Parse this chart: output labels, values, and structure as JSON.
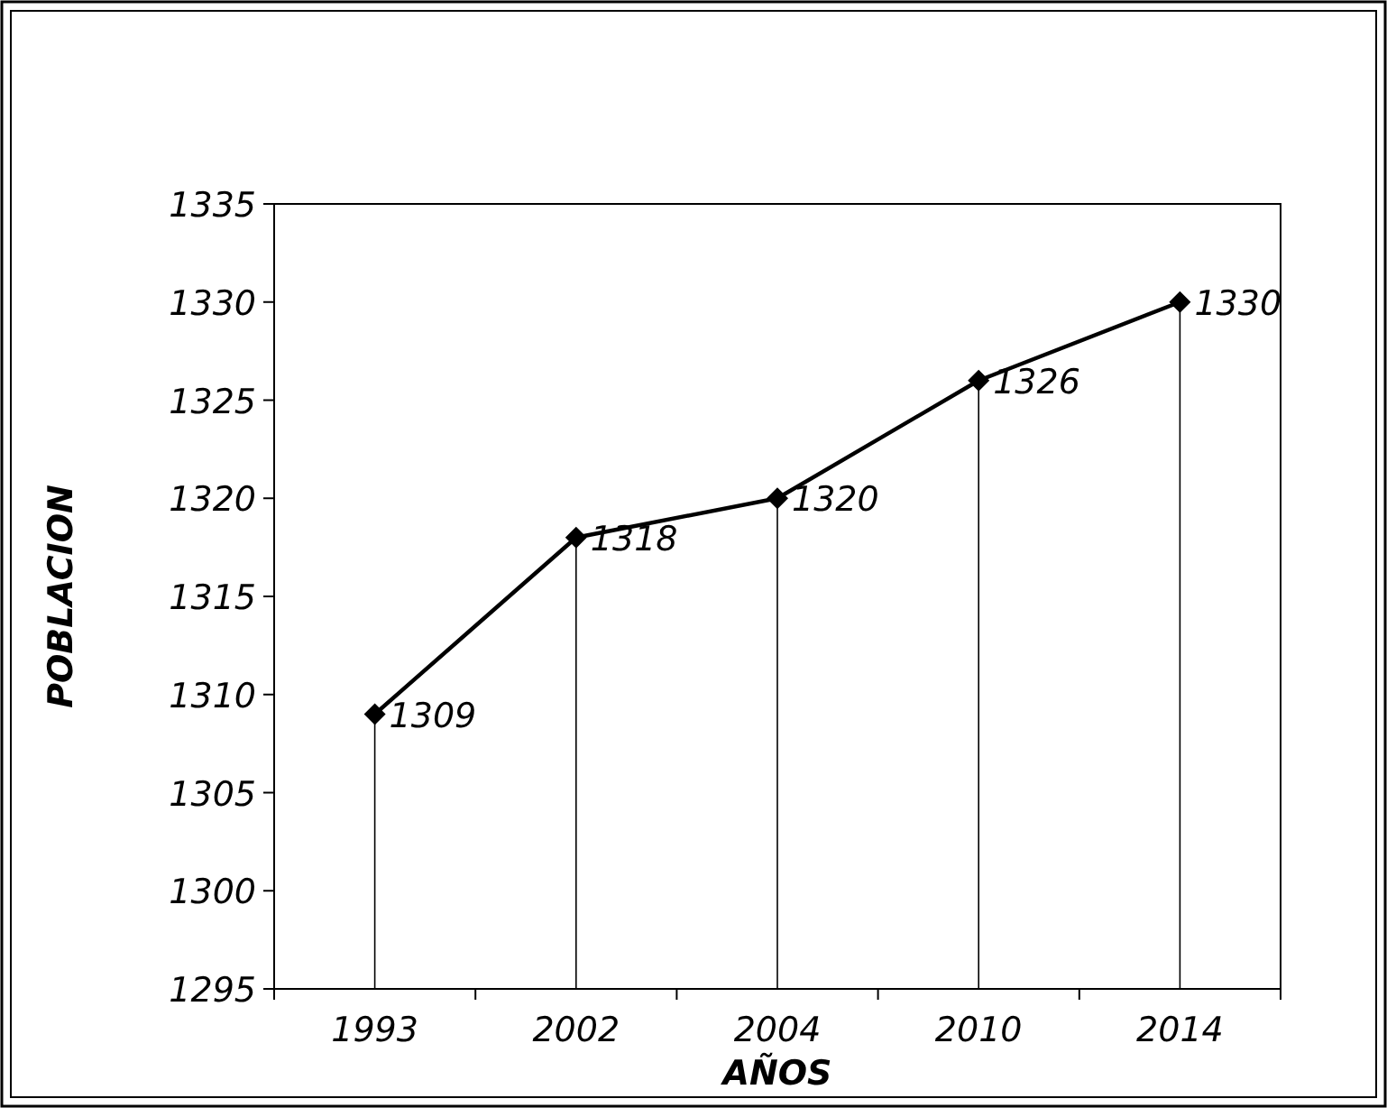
{
  "chart_data": {
    "type": "line",
    "xlabel": "AÑOS",
    "ylabel": "POBLACION",
    "categories": [
      "1993",
      "2002",
      "2004",
      "2010",
      "2014"
    ],
    "series": [
      {
        "color": "#000000",
        "values": [
          1309,
          1318,
          1320,
          1326,
          1330
        ]
      }
    ],
    "ylim": [
      1295,
      1335
    ],
    "yticks": [
      1295,
      1300,
      1305,
      1310,
      1315,
      1320,
      1325,
      1330,
      1335
    ],
    "marker": "diamond",
    "line_style": "solid",
    "data_labels": true,
    "grid": "x"
  }
}
